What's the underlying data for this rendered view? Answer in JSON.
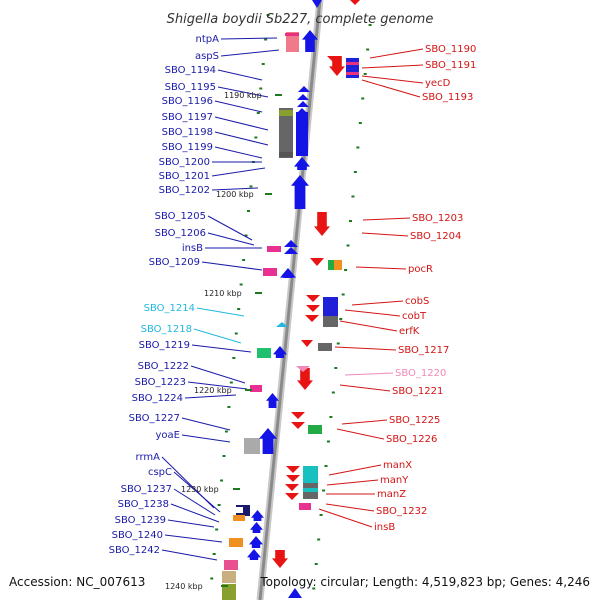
{
  "title": "Shigella boydii Sb227, complete genome",
  "footer": {
    "accession": "Accession: NC_007613",
    "summary": "Topology: circular; Length: 4,519,823 bp; Genes: 4,246"
  },
  "colors": {
    "left_label": "#1a1aa8",
    "right_label": "#d41414",
    "cyan_label": "#22b8e0",
    "pink_label": "#f08ab8",
    "backbone": "#8a8a8a",
    "tick": "#1f7a1f"
  },
  "ticks": [
    "1190 kbp",
    "1200 kbp",
    "1210 kbp",
    "1220 kbp",
    "1230 kbp",
    "1240 kbp"
  ],
  "left_labels": [
    "ntpA",
    "aspS",
    "SBO_1194",
    "SBO_1195",
    "SBO_1196",
    "SBO_1197",
    "SBO_1198",
    "SBO_1199",
    "SBO_1200",
    "SBO_1201",
    "SBO_1202",
    "SBO_1205",
    "SBO_1206",
    "insB",
    "SBO_1209",
    "SBO_1214",
    "SBO_1218",
    "SBO_1219",
    "SBO_1222",
    "SBO_1223",
    "SBO_1224",
    "SBO_1227",
    "yoaE",
    "rrmA",
    "cspC",
    "SBO_1237",
    "SBO_1238",
    "SBO_1239",
    "SBO_1240",
    "SBO_1242"
  ],
  "right_labels": [
    "SBO_1190",
    "SBO_1191",
    "yecD",
    "SBO_1193",
    "SBO_1203",
    "SBO_1204",
    "pocR",
    "cobS",
    "cobT",
    "erfK",
    "SBO_1217",
    "SBO_1220",
    "SBO_1221",
    "SBO_1225",
    "SBO_1226",
    "manX",
    "manY",
    "manZ",
    "SBO_1232",
    "insB"
  ]
}
